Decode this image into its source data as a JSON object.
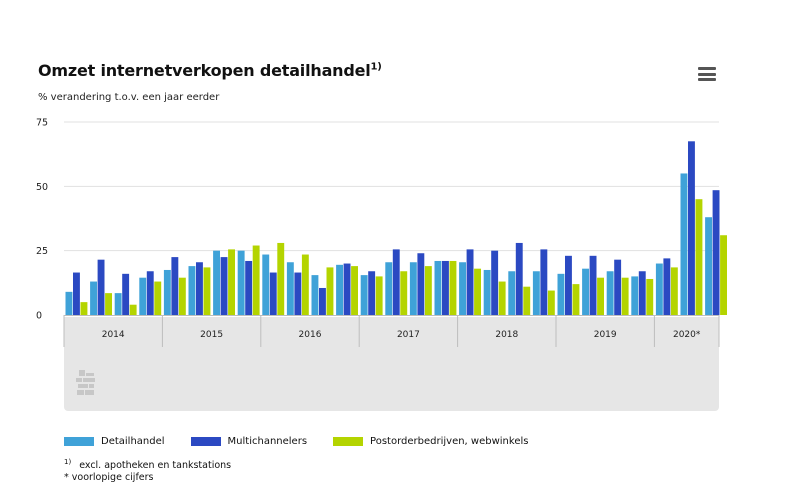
{
  "header": {
    "title": "Omzet internetverkopen detailhandel",
    "title_sup": "1)",
    "subtitle": "% verandering t.o.v. een jaar eerder"
  },
  "colors": {
    "detailhandel": "#3fa2d8",
    "multichannelers": "#2b49c2",
    "postorder": "#b4d400",
    "grid": "#e1e1e1",
    "axis_band": "#e6e6e6"
  },
  "legend": {
    "items": [
      {
        "label": "Detailhandel",
        "color": "#3fa2d8"
      },
      {
        "label": "Multichannelers",
        "color": "#2b49c2"
      },
      {
        "label": "Postorderbedrijven, webwinkels",
        "color": "#b4d400"
      }
    ]
  },
  "footnotes": {
    "note1_marker": "1)",
    "note1_text": "excl. apotheken en tankstations",
    "note2_text": "* voorlopige cijfers"
  },
  "chart_data": {
    "type": "bar",
    "title": "Omzet internetverkopen detailhandel",
    "subtitle": "% verandering t.o.v. een jaar eerder",
    "ylim": [
      0,
      75
    ],
    "yticks": [
      0,
      25,
      50,
      75
    ],
    "grid": true,
    "legend_position": "bottom",
    "year_groups": [
      {
        "label": "2014",
        "quarters": 4
      },
      {
        "label": "2015",
        "quarters": 4
      },
      {
        "label": "2016",
        "quarters": 4
      },
      {
        "label": "2017",
        "quarters": 4
      },
      {
        "label": "2018",
        "quarters": 4
      },
      {
        "label": "2019",
        "quarters": 4
      },
      {
        "label": "2020*",
        "quarters": 3
      }
    ],
    "categories": [
      "2014 Q1",
      "2014 Q2",
      "2014 Q3",
      "2014 Q4",
      "2015 Q1",
      "2015 Q2",
      "2015 Q3",
      "2015 Q4",
      "2016 Q1",
      "2016 Q2",
      "2016 Q3",
      "2016 Q4",
      "2017 Q1",
      "2017 Q2",
      "2017 Q3",
      "2017 Q4",
      "2018 Q1",
      "2018 Q2",
      "2018 Q3",
      "2018 Q4",
      "2019 Q1",
      "2019 Q2",
      "2019 Q3",
      "2019 Q4",
      "2020 Q1",
      "2020 Q2",
      "2020 Q3"
    ],
    "series": [
      {
        "name": "Detailhandel",
        "color": "#3fa2d8",
        "values": [
          9,
          13,
          8.5,
          14.5,
          17.5,
          19,
          25,
          25,
          23.5,
          20.5,
          15.5,
          19.5,
          15.5,
          20.5,
          20.5,
          21,
          20.5,
          17.5,
          17,
          17,
          16,
          18,
          17,
          15,
          20,
          55,
          38
        ]
      },
      {
        "name": "Multichannelers",
        "color": "#2b49c2",
        "values": [
          16.5,
          21.5,
          16,
          17,
          22.5,
          20.5,
          22.5,
          21,
          16.5,
          16.5,
          10.5,
          20,
          17,
          25.5,
          24,
          21,
          25.5,
          25,
          28,
          25.5,
          23,
          23,
          21.5,
          17,
          22,
          67.5,
          48.5
        ]
      },
      {
        "name": "Postorderbedrijven, webwinkels",
        "color": "#b4d400",
        "values": [
          5,
          8.5,
          4,
          13,
          14.5,
          18.5,
          25.5,
          27,
          28,
          23.5,
          18.5,
          19,
          15,
          17,
          19,
          21,
          18,
          13,
          11,
          9.5,
          12,
          14.5,
          14.5,
          14,
          18.5,
          45,
          31
        ]
      }
    ]
  }
}
